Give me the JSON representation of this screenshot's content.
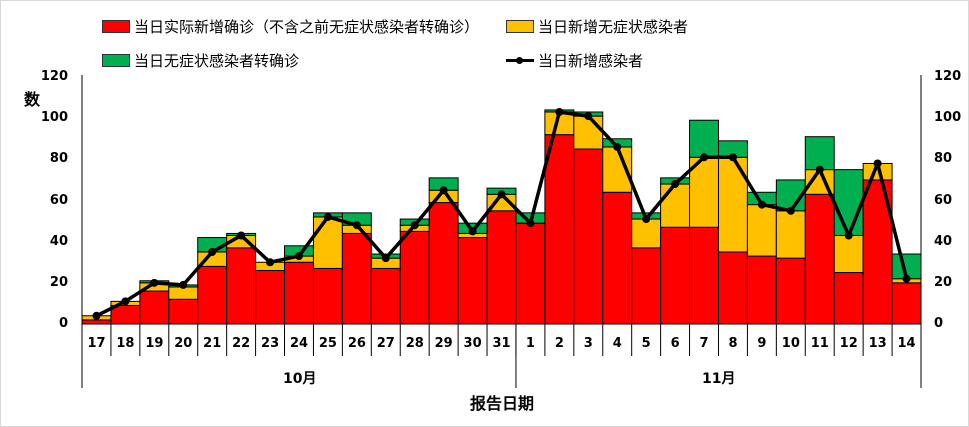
{
  "legend": {
    "red": "当日实际新增确诊（不含之前无症状感染者转确诊）",
    "yellow": "当日新增无症状感染者",
    "green": "当日无症状感染者转确诊",
    "line": "当日新增感染者"
  },
  "axis": {
    "ylabel": "数",
    "xtitle": "报告日期",
    "yticks": [
      "0",
      "20",
      "40",
      "60",
      "80",
      "100",
      "120"
    ],
    "month_oct": "10月",
    "month_nov": "11月"
  },
  "colors": {
    "red": "#ff0000",
    "yellow": "#ffc000",
    "green": "#00b050",
    "line": "#000000"
  },
  "chart_data": {
    "type": "bar",
    "stacked": true,
    "title": "",
    "xlabel": "报告日期",
    "ylabel": "数",
    "ylim": [
      0,
      120
    ],
    "secondary_ylim": [
      0,
      120
    ],
    "grid": false,
    "legend_position": "top",
    "month_groups": [
      {
        "label": "10月",
        "days": [
          "17",
          "18",
          "19",
          "20",
          "21",
          "22",
          "23",
          "24",
          "25",
          "26",
          "27",
          "28",
          "29",
          "30",
          "31"
        ]
      },
      {
        "label": "11月",
        "days": [
          "1",
          "2",
          "3",
          "4",
          "5",
          "6",
          "7",
          "8",
          "9",
          "10",
          "11",
          "12",
          "13",
          "14"
        ]
      }
    ],
    "categories": [
      "17",
      "18",
      "19",
      "20",
      "21",
      "22",
      "23",
      "24",
      "25",
      "26",
      "27",
      "28",
      "29",
      "30",
      "31",
      "1",
      "2",
      "3",
      "4",
      "5",
      "6",
      "7",
      "8",
      "9",
      "10",
      "11",
      "12",
      "13",
      "14"
    ],
    "series": [
      {
        "name": "当日实际新增确诊（不含之前无症状感染者转确诊）",
        "type": "bar",
        "color": "#ff0000",
        "values": [
          2,
          9,
          16,
          12,
          28,
          37,
          26,
          30,
          27,
          44,
          27,
          45,
          59,
          42,
          55,
          49,
          92,
          85,
          64,
          37,
          47,
          47,
          35,
          33,
          32,
          63,
          25,
          70,
          20
        ]
      },
      {
        "name": "当日新增无症状感染者",
        "type": "bar",
        "color": "#ffc000",
        "values": [
          2,
          2,
          4,
          6,
          7,
          6,
          4,
          3,
          25,
          4,
          5,
          3,
          6,
          2,
          8,
          0,
          11,
          16,
          22,
          14,
          21,
          34,
          46,
          25,
          23,
          12,
          18,
          8,
          2
        ]
      },
      {
        "name": "当日无症状感染者转确诊",
        "type": "bar",
        "color": "#00b050",
        "values": [
          0,
          0,
          1,
          1,
          7,
          1,
          0,
          5,
          2,
          6,
          2,
          3,
          6,
          5,
          3,
          5,
          1,
          2,
          4,
          3,
          3,
          18,
          8,
          6,
          15,
          16,
          32,
          0,
          12
        ]
      },
      {
        "name": "当日新增感染者",
        "type": "line",
        "color": "#000000",
        "values": [
          4,
          11,
          20,
          19,
          35,
          43,
          30,
          33,
          52,
          48,
          32,
          48,
          65,
          45,
          63,
          49,
          103,
          101,
          86,
          51,
          68,
          81,
          81,
          58,
          55,
          75,
          43,
          78,
          22
        ]
      }
    ]
  }
}
